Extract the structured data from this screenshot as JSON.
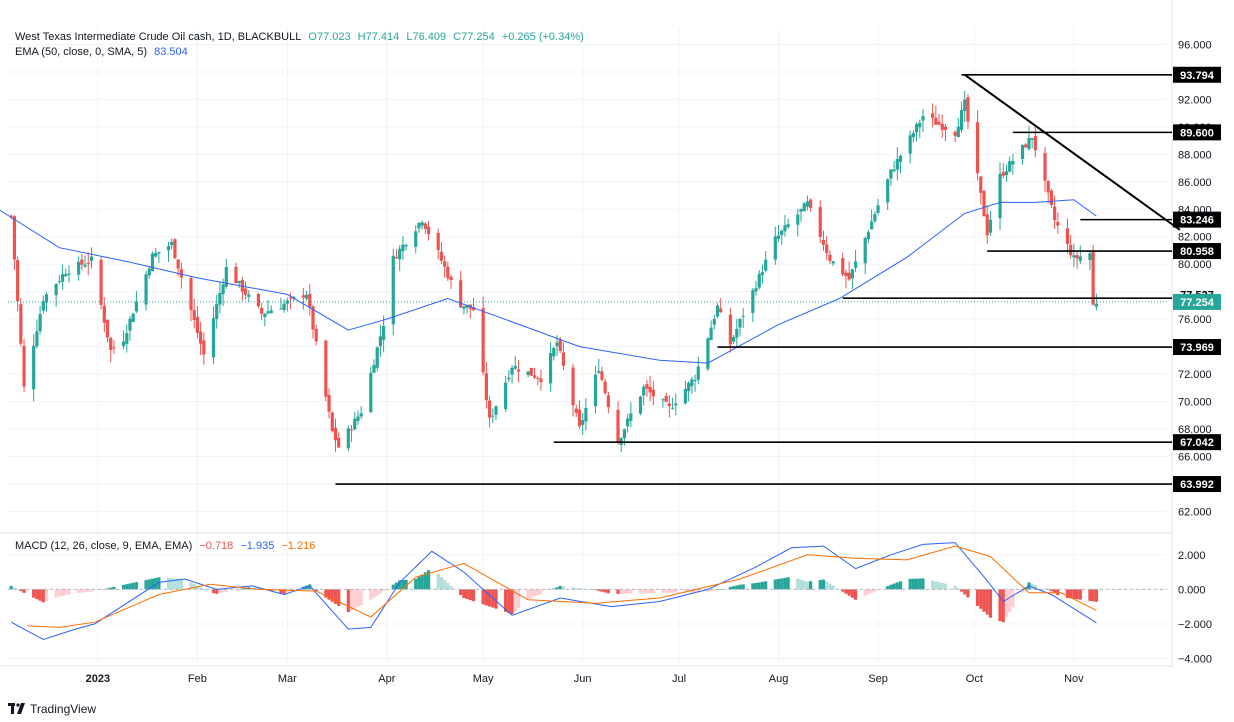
{
  "header": {
    "symbol": "West Texas Intermediate Crude Oil cash, 1D, BLACKBULL",
    "open": "O77.023",
    "high": "H77.414",
    "low": "L76.409",
    "close": "C77.254",
    "change": "+0.265 (+0.34%)",
    "ema_label": "EMA (50, close, 0, SMA, 5)",
    "ema_value": "83.504",
    "macd_label": "MACD (12, 26, close, 9, EMA, EMA)",
    "macd_hist": "−0.718",
    "macd_line": "−1.935",
    "macd_signal": "−1.216"
  },
  "watermark": "TradingView",
  "colors": {
    "up": "#26a69a",
    "down": "#ef5350",
    "ema": "#2962ff",
    "macd": "#2962ff",
    "signal": "#ff6d00",
    "grid": "#f0f3fa",
    "text": "#131722"
  },
  "chart_data": {
    "type": "candlestick",
    "x_axis": {
      "ticks": [
        {
          "label": "2023",
          "date": "2023-01-01"
        },
        {
          "label": "Feb",
          "date": "2023-02-01"
        },
        {
          "label": "Mar",
          "date": "2023-03-01"
        },
        {
          "label": "Apr",
          "date": "2023-04-01"
        },
        {
          "label": "May",
          "date": "2023-05-01"
        },
        {
          "label": "Jun",
          "date": "2023-06-01"
        },
        {
          "label": "Jul",
          "date": "2023-07-01"
        },
        {
          "label": "Aug",
          "date": "2023-08-01"
        },
        {
          "label": "Sep",
          "date": "2023-09-01"
        },
        {
          "label": "Oct",
          "date": "2023-10-01"
        },
        {
          "label": "Nov",
          "date": "2023-11-01"
        }
      ],
      "range": [
        "2022-12-04",
        "2023-11-30"
      ]
    },
    "price_axis": {
      "range": [
        60.5,
        97.2
      ],
      "ticks": [
        "96.000",
        "94.000",
        "92.000",
        "90.000",
        "88.000",
        "86.000",
        "84.000",
        "82.000",
        "80.000",
        "78.000",
        "76.000",
        "74.000",
        "72.000",
        "70.000",
        "68.000",
        "66.000",
        "64.000",
        "62.000"
      ]
    },
    "macd_axis": {
      "range": [
        -4.2,
        3.2
      ],
      "ticks": [
        "2.000",
        "0.000",
        "−2.000",
        "−4.000"
      ]
    },
    "price_path": [
      [
        "2022-12-05",
        83.5
      ],
      [
        "2022-12-09",
        71.0
      ],
      [
        "2022-12-15",
        77.5
      ],
      [
        "2022-12-22",
        79.5
      ],
      [
        "2022-12-30",
        80.3
      ],
      [
        "2023-01-05",
        73.7
      ],
      [
        "2023-01-09",
        74.6
      ],
      [
        "2023-01-18",
        80.6
      ],
      [
        "2023-01-24",
        81.5
      ],
      [
        "2023-02-03",
        73.4
      ],
      [
        "2023-02-10",
        79.7
      ],
      [
        "2023-02-21",
        76.4
      ],
      [
        "2023-02-28",
        77.1
      ],
      [
        "2023-03-07",
        77.9
      ],
      [
        "2023-03-15",
        67.8
      ],
      [
        "2023-03-17",
        66.7
      ],
      [
        "2023-03-24",
        69.3
      ],
      [
        "2023-03-31",
        75.7
      ],
      [
        "2023-04-03",
        80.4
      ],
      [
        "2023-04-12",
        83.3
      ],
      [
        "2023-04-17",
        80.8
      ],
      [
        "2023-04-24",
        77.1
      ],
      [
        "2023-04-28",
        76.7
      ],
      [
        "2023-05-03",
        68.6
      ],
      [
        "2023-05-10",
        72.6
      ],
      [
        "2023-05-19",
        71.7
      ],
      [
        "2023-05-24",
        74.3
      ],
      [
        "2023-05-31",
        68.0
      ],
      [
        "2023-06-06",
        72.5
      ],
      [
        "2023-06-12",
        67.1
      ],
      [
        "2023-06-20",
        71.0
      ],
      [
        "2023-06-28",
        69.5
      ],
      [
        "2023-07-06",
        71.8
      ],
      [
        "2023-07-13",
        76.9
      ],
      [
        "2023-07-17",
        74.2
      ],
      [
        "2023-07-31",
        81.8
      ],
      [
        "2023-08-10",
        84.4
      ],
      [
        "2023-08-17",
        80.4
      ],
      [
        "2023-08-23",
        78.9
      ],
      [
        "2023-09-05",
        86.7
      ],
      [
        "2023-09-15",
        90.8
      ],
      [
        "2023-09-25",
        89.6
      ],
      [
        "2023-09-28",
        91.7
      ],
      [
        "2023-10-05",
        82.3
      ],
      [
        "2023-10-09",
        86.4
      ],
      [
        "2023-10-19",
        89.3
      ],
      [
        "2023-10-26",
        83.2
      ],
      [
        "2023-11-01",
        80.4
      ],
      [
        "2023-11-06",
        80.8
      ],
      [
        "2023-11-07",
        77.0
      ],
      [
        "2023-11-08",
        77.25
      ]
    ],
    "ema50": [
      [
        "2022-12-01",
        84.0
      ],
      [
        "2022-12-20",
        81.2
      ],
      [
        "2023-01-10",
        80.2
      ],
      [
        "2023-02-01",
        79.0
      ],
      [
        "2023-03-01",
        77.8
      ],
      [
        "2023-03-20",
        75.2
      ],
      [
        "2023-04-01",
        76.0
      ],
      [
        "2023-04-20",
        77.5
      ],
      [
        "2023-05-10",
        75.8
      ],
      [
        "2023-05-31",
        74.0
      ],
      [
        "2023-06-25",
        73.0
      ],
      [
        "2023-07-10",
        72.8
      ],
      [
        "2023-08-01",
        75.6
      ],
      [
        "2023-08-20",
        77.5
      ],
      [
        "2023-09-10",
        80.5
      ],
      [
        "2023-09-28",
        83.7
      ],
      [
        "2023-10-09",
        84.5
      ],
      [
        "2023-10-20",
        84.5
      ],
      [
        "2023-11-01",
        84.7
      ],
      [
        "2023-11-08",
        83.5
      ]
    ],
    "levels": [
      {
        "label": "93.794",
        "value": 93.794,
        "from": "2023-09-27"
      },
      {
        "label": "89.600",
        "value": 89.6,
        "from": "2023-10-13"
      },
      {
        "label": "83.246",
        "value": 83.246,
        "from": "2023-11-03"
      },
      {
        "label": "80.958",
        "value": 80.958,
        "from": "2023-10-05"
      },
      {
        "label": "77.527",
        "value": 77.527,
        "from": "2023-08-21"
      },
      {
        "label": "73.969",
        "value": 73.969,
        "from": "2023-07-13"
      },
      {
        "label": "67.042",
        "value": 67.042,
        "from": "2023-05-23"
      },
      {
        "label": "63.992",
        "value": 63.992,
        "from": "2023-03-16"
      }
    ],
    "trendline": {
      "from": [
        "2023-09-28",
        93.794
      ],
      "to": [
        "2023-12-04",
        82.5
      ]
    },
    "price_labels": [
      {
        "label": "77.527",
        "value": 77.8,
        "style": "plain"
      },
      {
        "label": "77.254",
        "value": 77.254,
        "style": "current"
      }
    ],
    "last_price": 77.254,
    "macd_path": [
      [
        "2022-12-05",
        -1.9
      ],
      [
        "2022-12-15",
        -2.9
      ],
      [
        "2022-12-25",
        -2.3
      ],
      [
        "2022-12-31",
        -2.0
      ],
      [
        "2023-01-20",
        0.4
      ],
      [
        "2023-01-28",
        0.6
      ],
      [
        "2023-02-07",
        0.0
      ],
      [
        "2023-02-18",
        0.2
      ],
      [
        "2023-02-28",
        -0.3
      ],
      [
        "2023-03-08",
        0.2
      ],
      [
        "2023-03-20",
        -2.3
      ],
      [
        "2023-03-27",
        -2.2
      ],
      [
        "2023-04-05",
        0.4
      ],
      [
        "2023-04-15",
        2.2
      ],
      [
        "2023-04-25",
        1.0
      ],
      [
        "2023-05-10",
        -1.5
      ],
      [
        "2023-05-25",
        -0.5
      ],
      [
        "2023-06-10",
        -1.0
      ],
      [
        "2023-06-25",
        -0.7
      ],
      [
        "2023-07-10",
        0.0
      ],
      [
        "2023-07-25",
        1.3
      ],
      [
        "2023-08-05",
        2.4
      ],
      [
        "2023-08-15",
        2.5
      ],
      [
        "2023-08-25",
        1.2
      ],
      [
        "2023-09-05",
        2.0
      ],
      [
        "2023-09-15",
        2.6
      ],
      [
        "2023-09-25",
        2.7
      ],
      [
        "2023-10-05",
        0.5
      ],
      [
        "2023-10-10",
        -0.7
      ],
      [
        "2023-10-18",
        0.2
      ],
      [
        "2023-10-25",
        -0.3
      ],
      [
        "2023-11-08",
        -1.935
      ]
    ],
    "signal_path": [
      [
        "2022-12-10",
        -2.1
      ],
      [
        "2022-12-20",
        -2.2
      ],
      [
        "2022-12-31",
        -1.9
      ],
      [
        "2023-01-20",
        -0.3
      ],
      [
        "2023-02-05",
        0.3
      ],
      [
        "2023-02-20",
        0.0
      ],
      [
        "2023-03-10",
        -0.1
      ],
      [
        "2023-03-27",
        -1.6
      ],
      [
        "2023-04-10",
        0.7
      ],
      [
        "2023-04-25",
        1.5
      ],
      [
        "2023-05-15",
        -0.6
      ],
      [
        "2023-06-05",
        -0.8
      ],
      [
        "2023-06-25",
        -0.5
      ],
      [
        "2023-07-20",
        0.6
      ],
      [
        "2023-08-10",
        2.0
      ],
      [
        "2023-08-25",
        1.8
      ],
      [
        "2023-09-10",
        1.7
      ],
      [
        "2023-09-25",
        2.5
      ],
      [
        "2023-10-06",
        1.9
      ],
      [
        "2023-10-18",
        -0.2
      ],
      [
        "2023-10-28",
        -0.2
      ],
      [
        "2023-11-08",
        -1.216
      ]
    ]
  }
}
